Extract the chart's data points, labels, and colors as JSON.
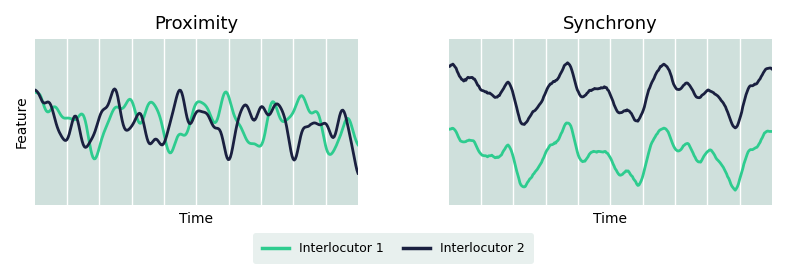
{
  "title_proximity": "Proximity",
  "title_synchrony": "Synchrony",
  "xlabel": "Time",
  "ylabel": "Feature",
  "color_interlocutor1": "#2ecc8f",
  "color_interlocutor2": "#1a2040",
  "legend_label1": "Interlocutor 1",
  "legend_label2": "Interlocutor 2",
  "background_color": "#cfe0dc",
  "fig_background": "#ffffff",
  "linewidth": 2.0,
  "n_points": 300,
  "title_fontsize": 13,
  "label_fontsize": 10,
  "legend_fontsize": 9,
  "n_vlines": 10
}
